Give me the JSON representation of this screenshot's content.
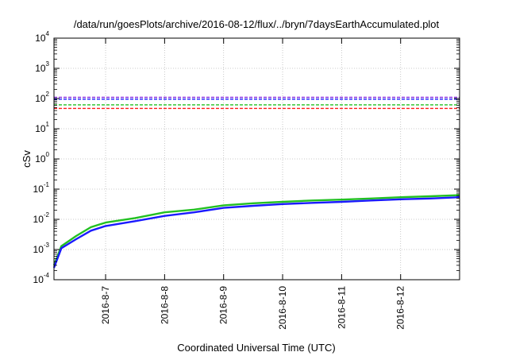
{
  "chart_data": {
    "type": "line",
    "title": "/data/run/goesPlots/archive/2016-08-12/flux/../bryn/7daysEarthAccumulated.plot",
    "xlabel": "Coordinated Universal Time (UTC)",
    "ylabel": "cSv",
    "y_scale": "log",
    "ylim": [
      0.0001,
      10000
    ],
    "y_ticks": [
      {
        "base": "10",
        "exp": "-4",
        "value": 0.0001
      },
      {
        "base": "10",
        "exp": "-3",
        "value": 0.001
      },
      {
        "base": "10",
        "exp": "-2",
        "value": 0.01
      },
      {
        "base": "10",
        "exp": "-1",
        "value": 0.1
      },
      {
        "base": "10",
        "exp": "0",
        "value": 1
      },
      {
        "base": "10",
        "exp": "1",
        "value": 10
      },
      {
        "base": "10",
        "exp": "2",
        "value": 100
      },
      {
        "base": "10",
        "exp": "3",
        "value": 1000
      },
      {
        "base": "10",
        "exp": "4",
        "value": 10000
      }
    ],
    "xlim": [
      "2016-08-06 03:00",
      "2016-08-12 23:59"
    ],
    "x_ticks": [
      "2016-8-7",
      "2016-8-8",
      "2016-8-9",
      "2016-8-10",
      "2016-8-11",
      "2016-8-12"
    ],
    "grid": true,
    "threshold_lines": [
      {
        "value": 110,
        "color": "#8a2be2"
      },
      {
        "value": 95,
        "color": "#1a1aff"
      },
      {
        "value": 62,
        "color": "#22c022"
      },
      {
        "value": 47,
        "color": "#ff1a1a"
      }
    ],
    "series": [
      {
        "color": "#22c022",
        "x": [
          "2016-08-06 03:00",
          "2016-08-06 06:00",
          "2016-08-06 12:00",
          "2016-08-06 18:00",
          "2016-08-07 00:00",
          "2016-08-07 12:00",
          "2016-08-08 00:00",
          "2016-08-08 12:00",
          "2016-08-09 00:00",
          "2016-08-09 12:00",
          "2016-08-10 00:00",
          "2016-08-10 12:00",
          "2016-08-11 00:00",
          "2016-08-11 12:00",
          "2016-08-12 00:00",
          "2016-08-12 12:00",
          "2016-08-12 23:59"
        ],
        "y": [
          0.0003,
          0.0013,
          0.0028,
          0.0055,
          0.0078,
          0.011,
          0.017,
          0.021,
          0.029,
          0.034,
          0.038,
          0.042,
          0.045,
          0.049,
          0.054,
          0.058,
          0.063
        ]
      },
      {
        "color": "#1a1aff",
        "x": [
          "2016-08-06 03:00",
          "2016-08-06 06:00",
          "2016-08-06 12:00",
          "2016-08-06 18:00",
          "2016-08-07 00:00",
          "2016-08-07 12:00",
          "2016-08-08 00:00",
          "2016-08-08 12:00",
          "2016-08-09 00:00",
          "2016-08-09 12:00",
          "2016-08-10 00:00",
          "2016-08-10 12:00",
          "2016-08-11 00:00",
          "2016-08-11 12:00",
          "2016-08-12 00:00",
          "2016-08-12 12:00",
          "2016-08-12 23:59"
        ],
        "y": [
          0.00025,
          0.0011,
          0.0022,
          0.0042,
          0.006,
          0.0087,
          0.013,
          0.017,
          0.024,
          0.028,
          0.032,
          0.035,
          0.038,
          0.042,
          0.046,
          0.049,
          0.054
        ]
      }
    ]
  }
}
